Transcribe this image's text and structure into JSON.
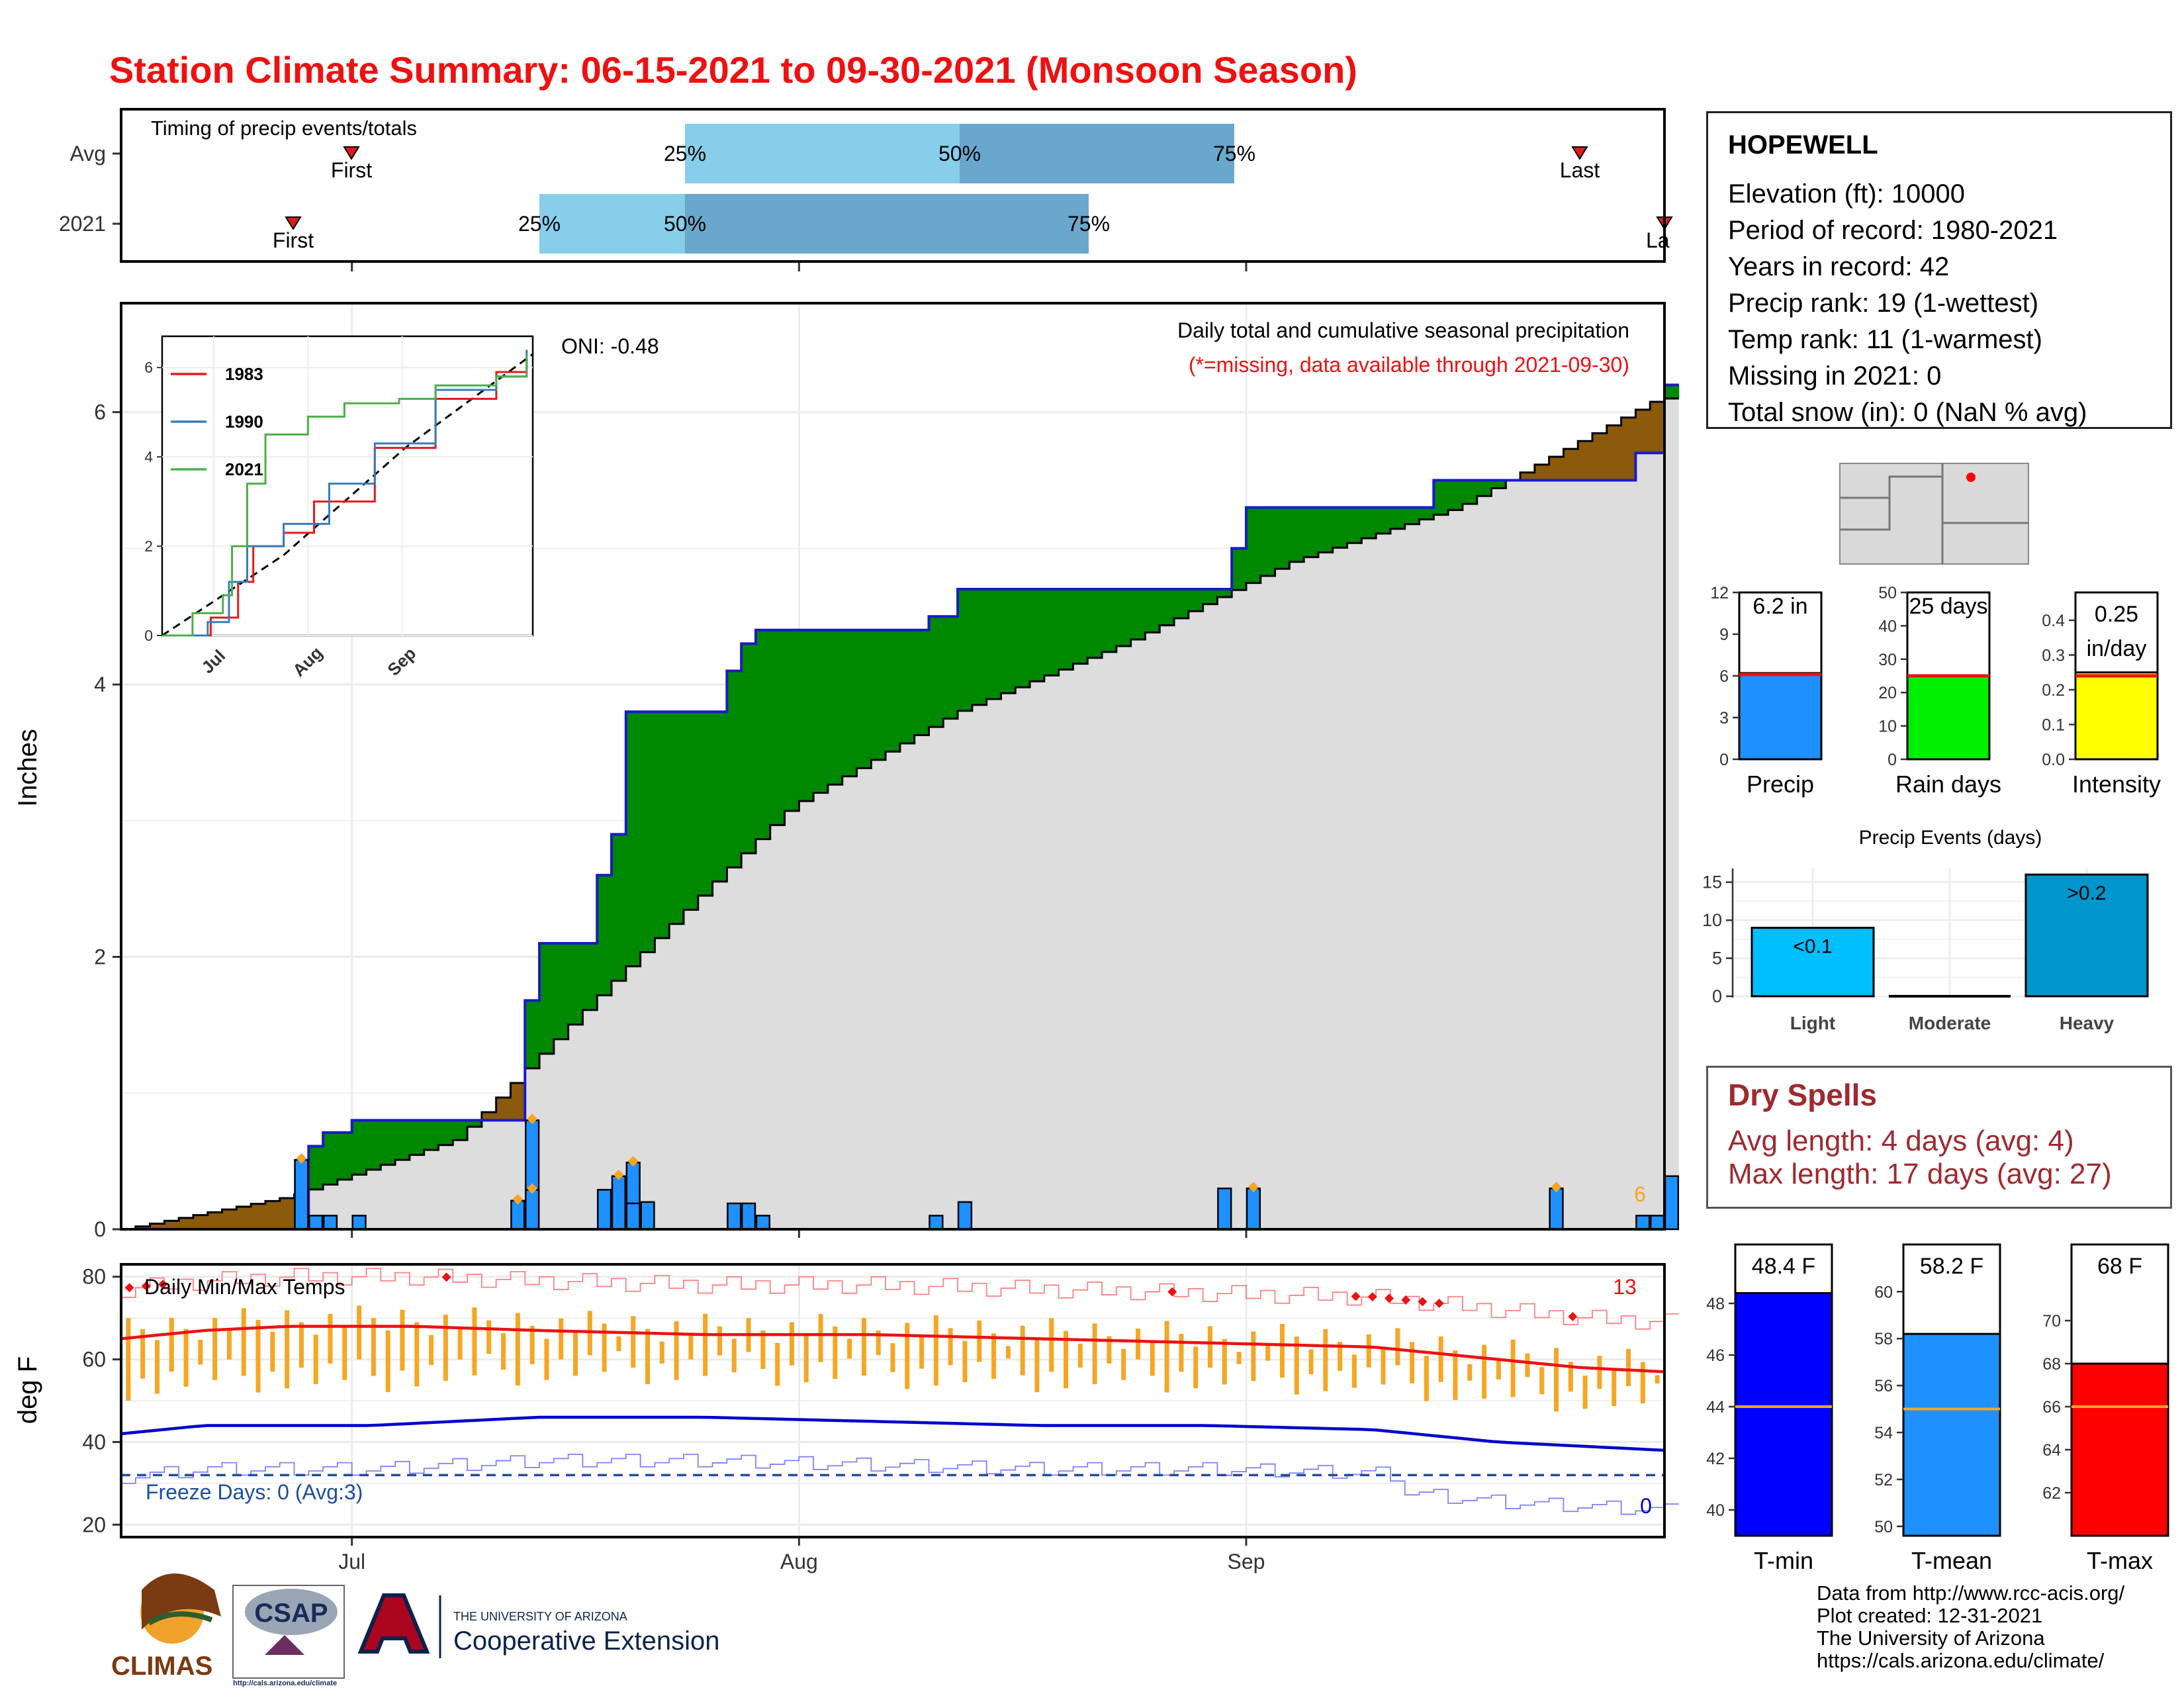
{
  "title": "Station Climate Summary: 06-15-2021 to 09-30-2021 (Monsoon Season)",
  "colors": {
    "title": "#ee1111",
    "green": "#008800",
    "brown": "#8b5a0a",
    "grey_fill": "#dddddd",
    "bar_blue": "#1e90ff",
    "dark_blue": "#0000cc",
    "orange": "#f5a623"
  },
  "timing": {
    "label": "Timing of precip events/totals",
    "rows": [
      {
        "name": "Avg",
        "first_label": "First",
        "last_label": "Last",
        "p25": "25%",
        "p50": "50%",
        "p75": "75%"
      },
      {
        "name": "2021",
        "first_label": "First",
        "last_label": "Last",
        "p25": "25%",
        "p50": "50%",
        "p75": "75%"
      }
    ]
  },
  "precip": {
    "caption": "Daily total and cumulative seasonal precipitation",
    "missing_note": "(*=missing, data available through 2021-09-30)",
    "ylabel": "Inches",
    "oni": "ONI: -0.48",
    "corner_value": "6",
    "y_ticks": [
      "0",
      "2",
      "4",
      "6"
    ]
  },
  "inset": {
    "legend": [
      "1983",
      "1990",
      "2021"
    ],
    "legend_colors": [
      "#e41a1c",
      "#377eb8",
      "#4daf4a"
    ],
    "y_ticks": [
      "0",
      "2",
      "4",
      "6"
    ],
    "x_ticks": [
      "Jul",
      "Aug",
      "Sep"
    ]
  },
  "temps": {
    "label": "Daily Min/Max Temps",
    "ylabel": "deg F",
    "freeze": "Freeze Days: 0 (Avg:3)",
    "record_hi_count": "13",
    "record_lo_count": "0",
    "y_ticks": [
      "20",
      "40",
      "60",
      "80"
    ]
  },
  "x_axis": {
    "ticks": [
      "Jul",
      "Aug",
      "Sep"
    ]
  },
  "station": {
    "name": "HOPEWELL",
    "lines": [
      "Elevation (ft): 10000",
      "Period of record: 1980-2021",
      "Years in record: 42",
      "Precip rank: 19 (1-wettest)",
      "Temp rank: 11 (1-warmest)",
      "Missing in 2021: 0",
      "Total snow (in): 0 (NaN % avg)"
    ]
  },
  "summary_bars": [
    {
      "label": "Precip",
      "value_text": "6.2 in",
      "value": 6.2,
      "avg": 6.1,
      "max": 12,
      "ticks": [
        "0",
        "3",
        "6",
        "9",
        "12"
      ],
      "color": "#1e90ff"
    },
    {
      "label": "Rain days",
      "value_text": "25 days",
      "value": 25,
      "avg": 25,
      "max": 50,
      "ticks": [
        "0",
        "10",
        "20",
        "30",
        "40",
        "50"
      ],
      "color": "#00ee00"
    },
    {
      "label": "Intensity",
      "value_text": "0.25",
      "value_text2": "in/day",
      "value": 0.25,
      "avg": 0.24,
      "max": 0.48,
      "ticks": [
        "0.0",
        "0.1",
        "0.2",
        "0.3",
        "0.4"
      ],
      "color": "#ffff00"
    }
  ],
  "events": {
    "title": "Precip Events (days)",
    "categories": [
      "Light",
      "Moderate",
      "Heavy"
    ],
    "values": [
      9,
      0,
      16
    ],
    "labels": [
      "<0.1",
      "",
      ">0.2"
    ],
    "ticks": [
      "0",
      "5",
      "10",
      "15"
    ]
  },
  "dry_spells": {
    "title": "Dry Spells",
    "avg": "Avg length: 4 days (avg: 4)",
    "max": "Max length: 17 days (avg: 27)"
  },
  "temp_bars": [
    {
      "label": "T-min",
      "value_text": "48.4 F",
      "value": 48.4,
      "avg": 44,
      "min": 39,
      "max": 49,
      "ticks": [
        "40",
        "42",
        "44",
        "46",
        "48"
      ],
      "color": "#0000ff"
    },
    {
      "label": "T-mean",
      "value_text": "58.2 F",
      "value": 58.2,
      "avg": 55,
      "min": 49.6,
      "max": 60.6,
      "ticks": [
        "50",
        "52",
        "54",
        "56",
        "58",
        "60"
      ],
      "color": "#1e90ff"
    },
    {
      "label": "T-max",
      "value_text": "68 F",
      "value": 68,
      "avg": 66,
      "min": 60,
      "max": 72,
      "ticks": [
        "62",
        "64",
        "66",
        "68",
        "70"
      ],
      "color": "#ff0000"
    }
  ],
  "credits": [
    "Data from http://www.rcc-acis.org/",
    "Plot created: 12-31-2021",
    "The University of Arizona",
    "https://cals.arizona.edu/climate/"
  ],
  "logos": {
    "climas": "CLIMAS",
    "csap": "CSAP",
    "csap_url": "http://cals.arizona.edu/climate",
    "ua_small": "THE UNIVERSITY OF ARIZONA",
    "ua_big": "Cooperative Extension"
  },
  "chart_data": {
    "type": "area",
    "start": "2021-06-15",
    "end": "2021-09-30",
    "series": [
      {
        "name": "2021",
        "cum_steps": [
          [
            21,
            0.51
          ],
          [
            22,
            0.61
          ],
          [
            24,
            0.71
          ],
          [
            26,
            0.8
          ],
          [
            47,
            0.88
          ],
          [
            48,
            1.68
          ],
          [
            49,
            2.1
          ],
          [
            56,
            2.4
          ],
          [
            57,
            2.6
          ],
          [
            58,
            2.9
          ],
          [
            59,
            3.3
          ],
          [
            60,
            3.8
          ],
          [
            71,
            3.9
          ],
          [
            72,
            4.1
          ],
          [
            74,
            4.3
          ],
          [
            76,
            4.4
          ],
          [
            96,
            4.5
          ],
          [
            100,
            4.7
          ],
          [
            132,
            5.0
          ],
          [
            134,
            5.3
          ],
          [
            150,
            5.3
          ],
          [
            157,
            5.5
          ],
          [
            180,
            5.7
          ],
          [
            184,
            6.2
          ]
        ]
      },
      {
        "name": "Avg",
        "cum_endpoint": [
          [
            0,
            0.0
          ],
          [
            20,
            0.24
          ],
          [
            40,
            0.66
          ],
          [
            60,
            1.9
          ],
          [
            80,
            3.1
          ],
          [
            100,
            3.8
          ],
          [
            120,
            4.3
          ],
          [
            140,
            4.9
          ],
          [
            160,
            5.3
          ],
          [
            184,
            6.1
          ]
        ]
      }
    ],
    "daily_precip": [
      [
        21,
        0.51
      ],
      [
        22,
        0.1
      ],
      [
        24,
        0.1
      ],
      [
        27,
        0.1
      ],
      [
        47,
        0.21
      ],
      [
        48,
        0.8
      ],
      [
        49,
        0.29
      ],
      [
        57,
        0.29
      ],
      [
        58,
        0.19
      ],
      [
        59,
        0.39
      ],
      [
        60,
        0.49
      ],
      [
        61,
        0.19
      ],
      [
        62,
        0.2
      ],
      [
        72,
        0.1
      ],
      [
        73,
        0.19
      ],
      [
        74,
        0.19
      ],
      [
        76,
        0.1
      ],
      [
        96,
        0.1
      ],
      [
        100,
        0.2
      ],
      [
        132,
        0.3
      ],
      [
        135,
        0.3
      ],
      [
        171,
        0.3
      ],
      [
        182,
        0.1
      ],
      [
        184,
        0.1
      ],
      [
        185,
        0.39
      ]
    ],
    "inset_series": [
      {
        "name": "1983",
        "points": [
          [
            0,
            0
          ],
          [
            16,
            0.4
          ],
          [
            25,
            1.2
          ],
          [
            30,
            2.0
          ],
          [
            40,
            2.3
          ],
          [
            50,
            3.0
          ],
          [
            70,
            4.2
          ],
          [
            90,
            5.3
          ],
          [
            110,
            5.9
          ],
          [
            120,
            6.2
          ]
        ]
      },
      {
        "name": "1990",
        "points": [
          [
            0,
            0
          ],
          [
            15,
            0.3
          ],
          [
            22,
            1.2
          ],
          [
            28,
            2.0
          ],
          [
            40,
            2.5
          ],
          [
            55,
            3.4
          ],
          [
            70,
            4.3
          ],
          [
            90,
            5.5
          ],
          [
            110,
            5.8
          ],
          [
            120,
            6.4
          ]
        ]
      },
      {
        "name": "2021",
        "points": [
          [
            0,
            0
          ],
          [
            10,
            0.5
          ],
          [
            20,
            0.9
          ],
          [
            23,
            2.0
          ],
          [
            28,
            3.4
          ],
          [
            34,
            4.5
          ],
          [
            48,
            4.9
          ],
          [
            60,
            5.2
          ],
          [
            78,
            5.3
          ],
          [
            90,
            5.6
          ],
          [
            110,
            5.8
          ],
          [
            120,
            6.3
          ]
        ]
      }
    ],
    "tmax_avg": [
      [
        0,
        65
      ],
      [
        10,
        67
      ],
      [
        20,
        68
      ],
      [
        35,
        68
      ],
      [
        50,
        67
      ],
      [
        70,
        66
      ],
      [
        90,
        66
      ],
      [
        110,
        65
      ],
      [
        130,
        64
      ],
      [
        150,
        63
      ],
      [
        165,
        60
      ],
      [
        175,
        58
      ],
      [
        185,
        57
      ]
    ],
    "tmin_avg": [
      [
        0,
        42
      ],
      [
        10,
        44
      ],
      [
        30,
        44
      ],
      [
        50,
        46
      ],
      [
        70,
        46
      ],
      [
        90,
        45
      ],
      [
        110,
        44
      ],
      [
        130,
        44
      ],
      [
        150,
        43
      ],
      [
        165,
        40
      ],
      [
        175,
        39
      ],
      [
        185,
        38
      ]
    ],
    "freeze_line": 32,
    "y_temp_range": [
      17,
      83
    ],
    "y_precip_range": [
      0,
      6.8
    ]
  }
}
